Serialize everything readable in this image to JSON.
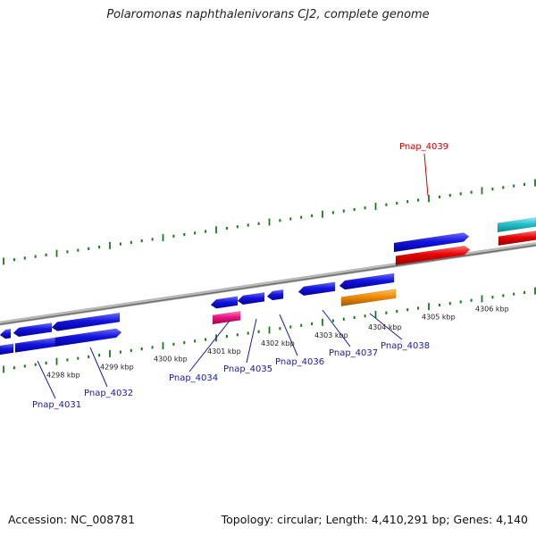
{
  "title": "Polaromonas naphthalenivorans CJ2, complete genome",
  "footer": {
    "accession": "Accession: NC_008781",
    "topology": "Topology: circular; Length: 4,410,291 bp; Genes: 4,140"
  },
  "scale_labels": [
    "4298 kbp",
    "4299 kbp",
    "4300 kbp",
    "4301 kbp",
    "4302 kbp",
    "4303 kbp",
    "4304 kbp",
    "4305 kbp",
    "4306 kbp"
  ],
  "gene_labels": [
    "Pnap_4031",
    "Pnap_4032",
    "Pnap_4034",
    "Pnap_4035",
    "Pnap_4036",
    "Pnap_4037",
    "Pnap_4038",
    "Pnap_4039"
  ],
  "colors": {
    "cds": "#1010dd",
    "red_feature": "#e00000",
    "pink_feature": "#e8167a",
    "orange_feature": "#f08a00",
    "cyan_feature": "#22c0cc",
    "backbone": "#888888",
    "ticks": "#1a7a1a",
    "label_blue": "#1a1aa8",
    "label_red": "#cc0000"
  }
}
